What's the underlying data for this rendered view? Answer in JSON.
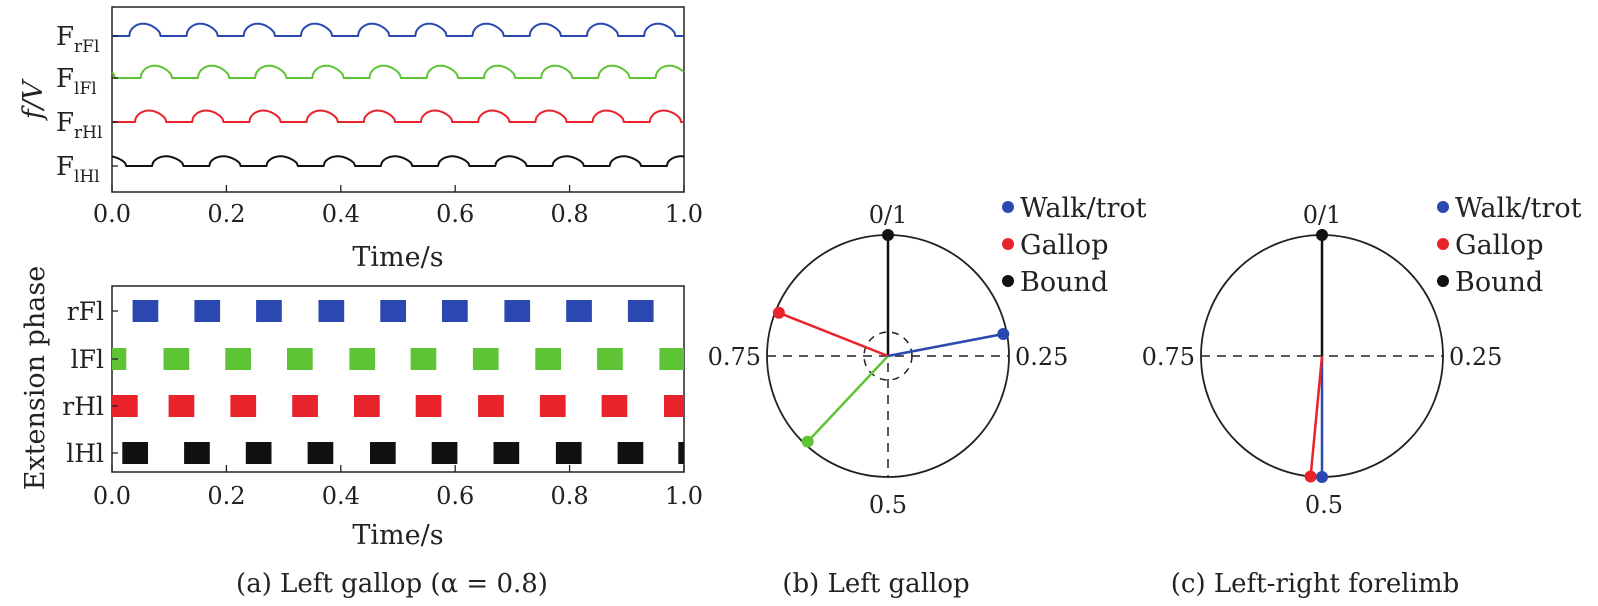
{
  "chart_data": [
    {
      "id": "a-top",
      "type": "line",
      "ylabel": "f/V",
      "xlabel": "Time/s",
      "xlim": [
        0,
        1.0
      ],
      "x_ticks": [
        "0.0",
        "0.2",
        "0.4",
        "0.6",
        "0.8",
        "1.0"
      ],
      "series": [
        {
          "name": "F",
          "sub": "rFl",
          "color": "#2a48b0",
          "period": 0.1,
          "phase": 0.03,
          "duty": 0.55
        },
        {
          "name": "F",
          "sub": "lFl",
          "color": "#5ec435",
          "period": 0.1,
          "phase": 0.05,
          "duty": 0.55
        },
        {
          "name": "F",
          "sub": "rHl",
          "color": "#e8232b",
          "period": 0.1,
          "phase": 0.04,
          "duty": 0.55
        },
        {
          "name": "F",
          "sub": "lHl",
          "color": "#111111",
          "period": 0.1,
          "phase": 0.07,
          "duty": 0.55
        }
      ]
    },
    {
      "id": "a-bottom",
      "type": "bar",
      "ylabel": "Extension phase",
      "xlabel": "Time/s",
      "xlim": [
        0,
        1.0
      ],
      "x_ticks": [
        "0.0",
        "0.2",
        "0.4",
        "0.6",
        "0.8",
        "1.0"
      ],
      "rows": [
        {
          "label": "rFl",
          "color": "#2a48b0",
          "starts": [
            0.036,
            0.144,
            0.252,
            0.361,
            0.469,
            0.577,
            0.686,
            0.794,
            0.902
          ],
          "width": 0.045
        },
        {
          "label": "lFl",
          "color": "#5ec435",
          "starts": [
            -0.02,
            0.09,
            0.198,
            0.306,
            0.415,
            0.522,
            0.631,
            0.74,
            0.848,
            0.957
          ],
          "width": 0.045
        },
        {
          "label": "rHl",
          "color": "#e8232b",
          "starts": [
            0.0,
            0.099,
            0.207,
            0.315,
            0.423,
            0.531,
            0.64,
            0.748,
            0.856,
            0.965
          ],
          "width": 0.045
        },
        {
          "label": "lHl",
          "color": "#111111",
          "starts": [
            0.018,
            0.126,
            0.234,
            0.342,
            0.451,
            0.559,
            0.667,
            0.776,
            0.884,
            0.99
          ],
          "width": 0.045
        }
      ],
      "caption": "(a) Left gallop (α = 0.8)"
    },
    {
      "id": "b",
      "type": "scatter",
      "chart_kind": "polar-phase",
      "labels": {
        "top": "0/1",
        "right": "0.25",
        "bottom": "0.5",
        "left": "0.75"
      },
      "inner_dashed_circle": true,
      "points": [
        {
          "phase": 0.0,
          "r": 1.0,
          "color": "#111111"
        },
        {
          "phase": 0.22,
          "r": 0.97,
          "color": "#2a48b0"
        },
        {
          "phase": 0.62,
          "r": 0.97,
          "color": "#5ec435"
        },
        {
          "phase": 0.81,
          "r": 0.97,
          "color": "#e8232b"
        }
      ],
      "legend": [
        {
          "label": "Walk/trot",
          "color": "#2a48b0"
        },
        {
          "label": "Gallop",
          "color": "#e8232b"
        },
        {
          "label": "Bound",
          "color": "#111111"
        }
      ],
      "caption": "(b) Left gallop"
    },
    {
      "id": "c",
      "type": "scatter",
      "chart_kind": "polar-phase",
      "labels": {
        "top": "0/1",
        "right": "0.25",
        "bottom": "",
        "left": "0.75",
        "bottom_left": "0.5"
      },
      "inner_dashed_circle": false,
      "points": [
        {
          "phase": 0.0,
          "r": 1.0,
          "color": "#111111"
        },
        {
          "phase": 0.5,
          "r": 1.0,
          "color": "#2a48b0"
        },
        {
          "phase": 0.515,
          "r": 1.0,
          "color": "#e8232b"
        }
      ],
      "legend": [
        {
          "label": "Walk/trot",
          "color": "#2a48b0"
        },
        {
          "label": "Gallop",
          "color": "#e8232b"
        },
        {
          "label": "Bound",
          "color": "#111111"
        }
      ],
      "caption": "(c) Left-right forelimb"
    }
  ]
}
